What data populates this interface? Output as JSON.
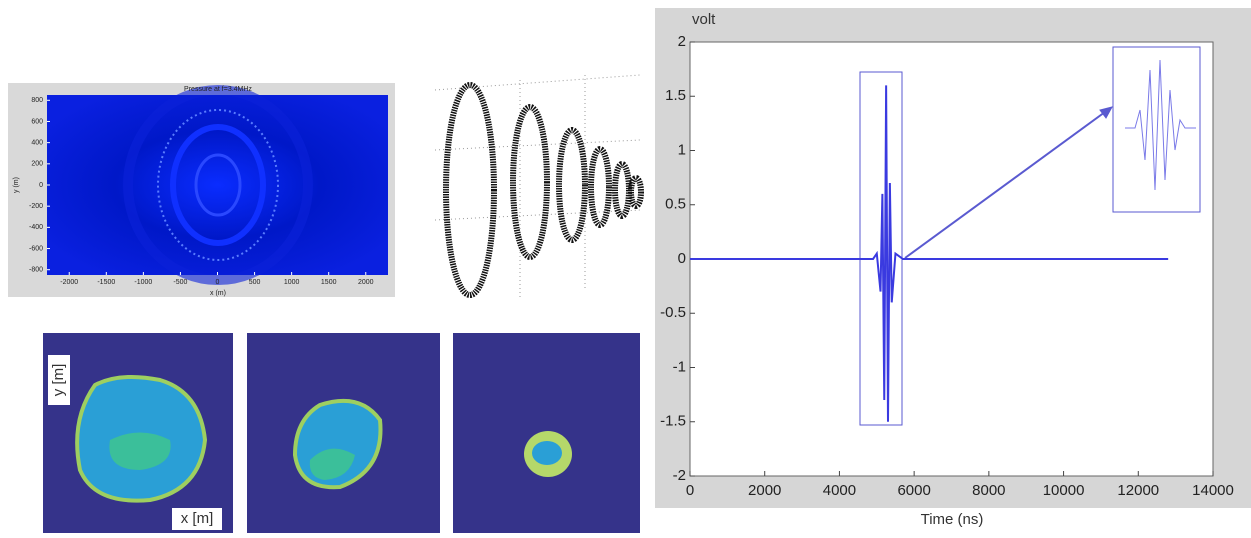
{
  "chart_data": [
    {
      "type": "heatmap",
      "title": "Pressure at f=3.4MHz",
      "xlabel": "x (m)",
      "ylabel": "y (m)",
      "xlim": [
        -2300,
        2300
      ],
      "xticks": [
        -2000,
        -1500,
        -1000,
        -500,
        0,
        500,
        1000,
        1500,
        2000
      ],
      "ylim": [
        -850,
        850
      ],
      "yticks": [
        800,
        600,
        400,
        200,
        0,
        -200,
        -400,
        -600,
        -800
      ]
    },
    {
      "type": "image-row",
      "ylabel": "y [m]",
      "xlabel": "x [m]"
    },
    {
      "type": "line",
      "ylabel": "volt",
      "xlabel": "Time (ns)",
      "color": "#3a3ae0",
      "x": [
        0,
        4900,
        5000,
        5100,
        5150,
        5200,
        5250,
        5300,
        5350,
        5400,
        5500,
        5700,
        12800
      ],
      "values": [
        0,
        0,
        0.05,
        -0.3,
        0.6,
        -1.3,
        1.6,
        -1.5,
        0.7,
        -0.4,
        0.05,
        0,
        0
      ],
      "xlim": [
        0,
        14000
      ],
      "xticks": [
        0,
        2000,
        4000,
        6000,
        8000,
        10000,
        12000,
        14000
      ],
      "ylim": [
        -2,
        2
      ],
      "yticks": [
        -2,
        -1.5,
        -1,
        -0.5,
        0,
        0.5,
        1,
        1.5,
        2
      ]
    }
  ]
}
